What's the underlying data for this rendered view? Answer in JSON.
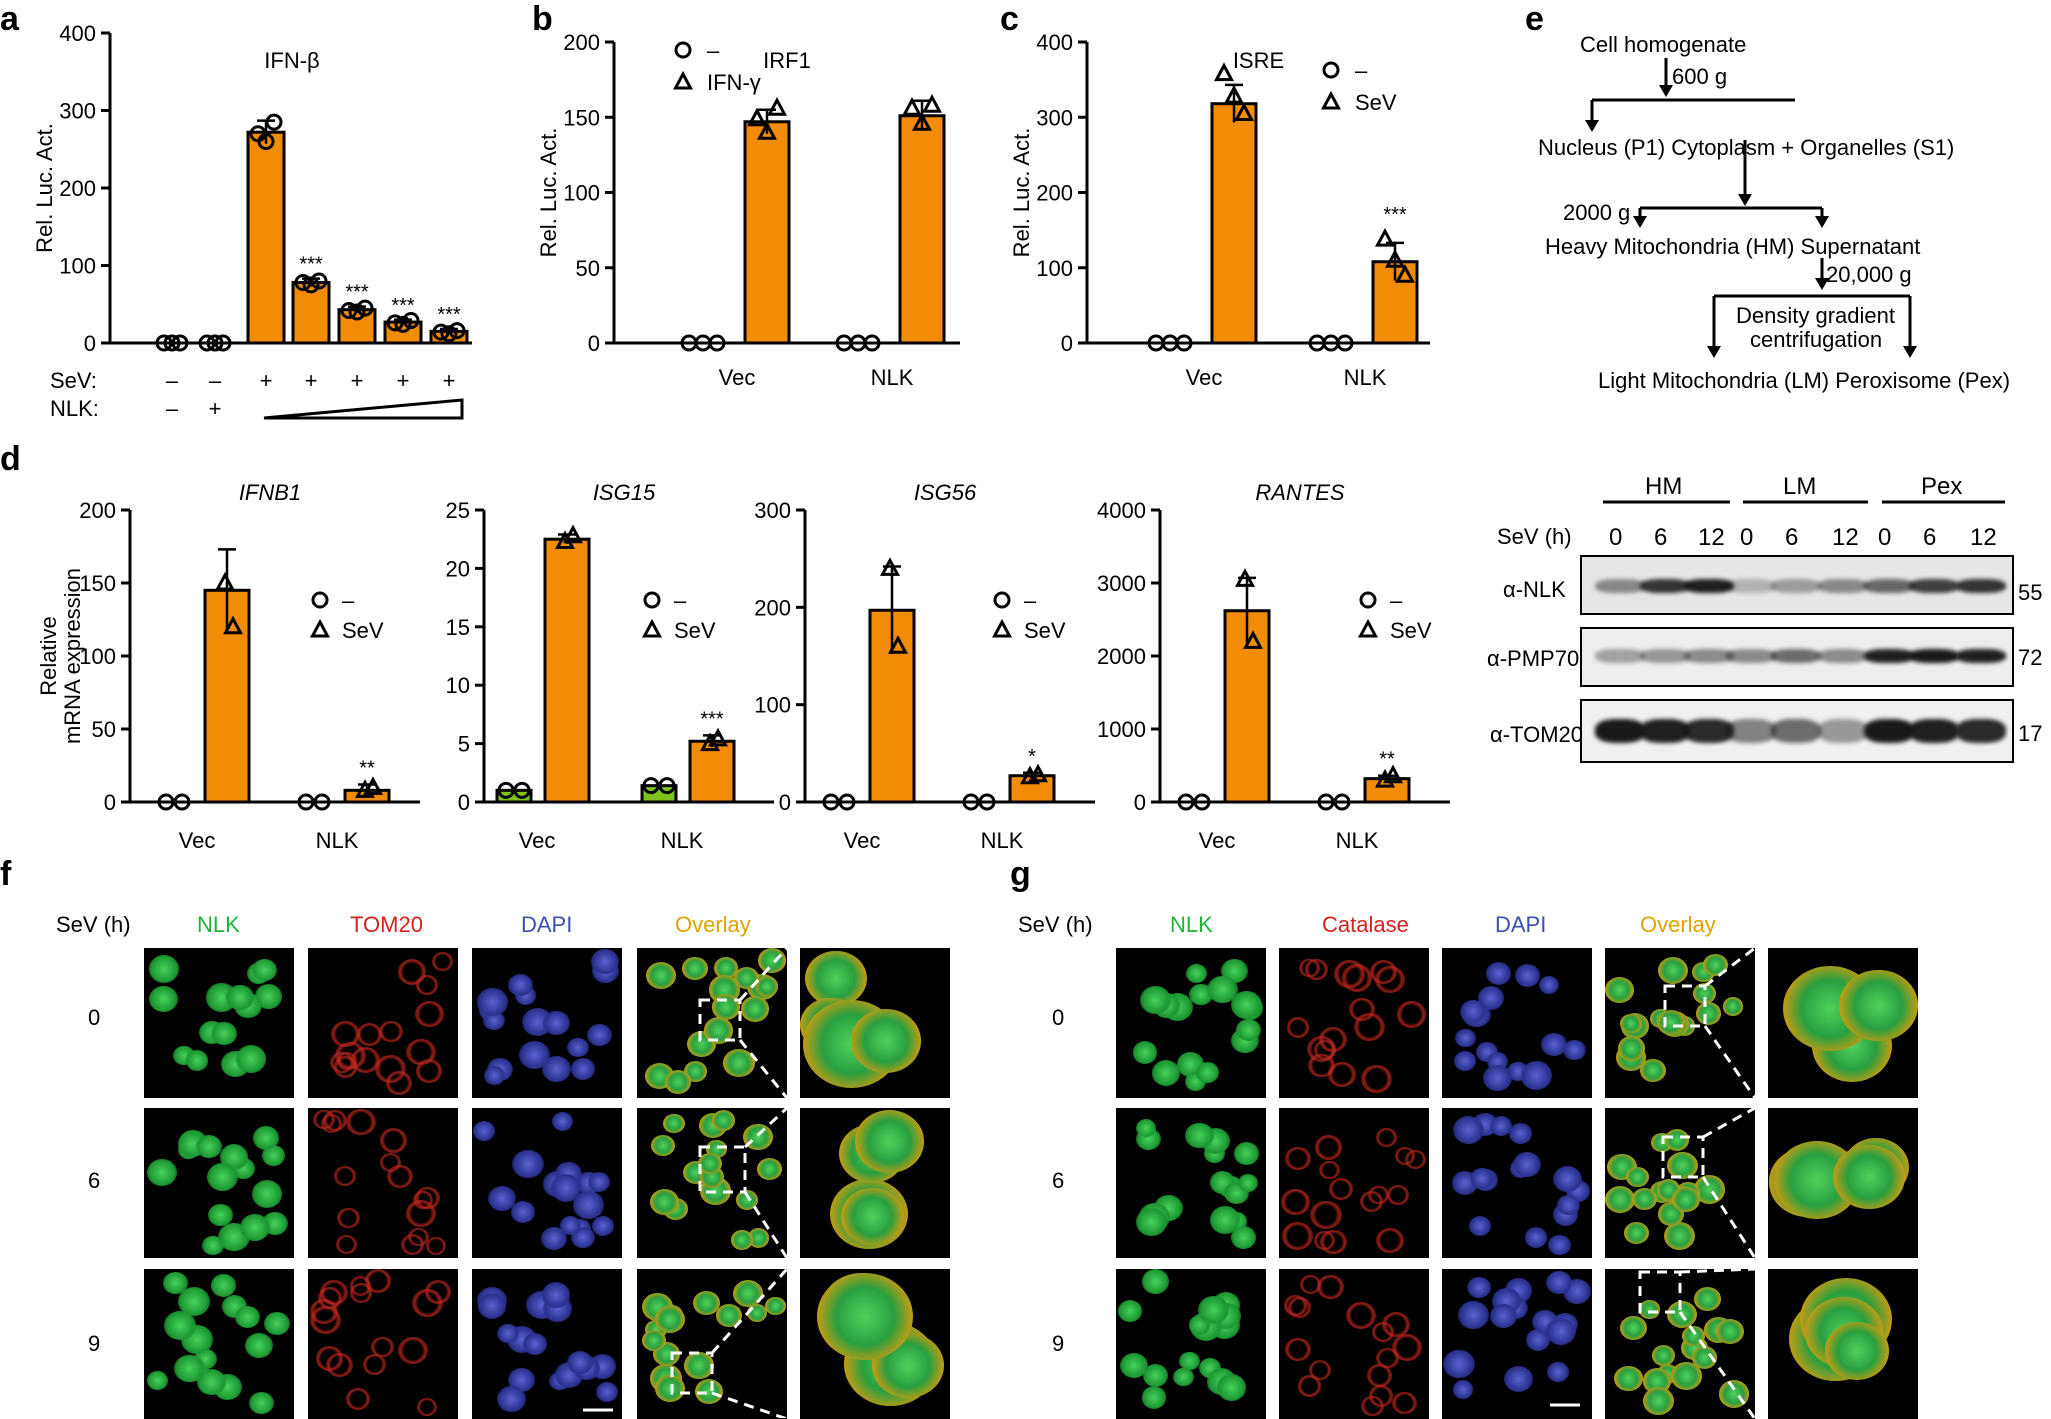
{
  "panels": {
    "a": {
      "letter": "a",
      "title": "IFN-β",
      "ylabel": "Rel. Luc. Act.",
      "row_sev_label": "SeV:",
      "row_nlk_label": "NLK:",
      "sev_marks": [
        "–",
        "–",
        "+",
        "+",
        "+",
        "+",
        "+"
      ],
      "nlk_marks": [
        "–",
        "+"
      ],
      "stars": [
        "***",
        "***",
        "***",
        "***"
      ]
    },
    "b": {
      "letter": "b",
      "title": "IRF1",
      "ylabel": "Rel. Luc. Act.",
      "legend": [
        "–",
        "IFN-γ"
      ],
      "xticks": [
        "Vec",
        "NLK"
      ]
    },
    "c": {
      "letter": "c",
      "title": "ISRE",
      "ylabel": "Rel. Luc. Act.",
      "legend": [
        "–",
        "SeV"
      ],
      "xticks": [
        "Vec",
        "NLK"
      ],
      "stars": [
        "***"
      ]
    },
    "d": {
      "letter": "d",
      "ylabel_1": "Relative",
      "ylabel_2": "mRNA expression",
      "genes": [
        "IFNB1",
        "ISG15",
        "ISG56",
        "RANTES"
      ],
      "legend": [
        "–",
        "SeV"
      ],
      "xticks": [
        "Vec",
        "NLK"
      ],
      "stars": [
        "**",
        "***",
        "*",
        "**"
      ]
    },
    "e": {
      "letter": "e",
      "flow": {
        "top": "Cell homogenate",
        "g1": "600 g",
        "row1": "Nucleus (P1) Cytoplasm + Organelles (S1)",
        "g2": "2000 g",
        "row2": "Heavy Mitochondria (HM) Supernatant",
        "g3": "20,000 g",
        "box1": "Density gradient",
        "box2": "centrifugation",
        "row3": "Light Mitochondria (LM) Peroxisome (Pex)"
      },
      "blot": {
        "groups": [
          "HM",
          "LM",
          "Pex"
        ],
        "sev_label": "SeV (h)",
        "times": [
          "0",
          "6",
          "12",
          "0",
          "6",
          "12",
          "0",
          "6",
          "12"
        ],
        "rows": [
          {
            "label": "α-NLK",
            "mw": "55"
          },
          {
            "label": "α-PMP70",
            "mw": "72"
          },
          {
            "label": "α-TOM20",
            "mw": "17"
          }
        ]
      }
    },
    "f": {
      "letter": "f",
      "sev_label": "SeV (h)",
      "cols": [
        "NLK",
        "TOM20",
        "DAPI",
        "Overlay"
      ],
      "rows": [
        "0",
        "6",
        "9"
      ]
    },
    "g": {
      "letter": "g",
      "sev_label": "SeV (h)",
      "cols": [
        "NLK",
        "Catalase",
        "DAPI",
        "Overlay"
      ],
      "rows": [
        "0",
        "6",
        "9"
      ]
    }
  },
  "colors": {
    "orange": "#f28c06",
    "green_bar": "#7cc31b",
    "nlk": "#1fb43a",
    "tom20": "#d6221c",
    "dapi": "#3d4fb0",
    "overlay": "#e0a300"
  },
  "chart_data": [
    {
      "type": "bar",
      "title": "IFN-β",
      "ylabel": "Rel. Luc. Act.",
      "ylim": [
        0,
        400
      ],
      "series": [
        {
          "values": [
            0,
            0,
            272,
            78,
            43,
            27,
            15
          ]
        }
      ]
    },
    {
      "type": "bar",
      "title": "IRF1",
      "ylabel": "Rel. Luc. Act.",
      "ylim": [
        0,
        200
      ],
      "categories": [
        "Vec",
        "NLK"
      ],
      "series": [
        {
          "name": "–",
          "values": [
            0,
            0
          ]
        },
        {
          "name": "IFN-γ",
          "values": [
            147,
            151
          ]
        }
      ]
    },
    {
      "type": "bar",
      "title": "ISRE",
      "ylabel": "Rel. Luc. Act.",
      "ylim": [
        0,
        400
      ],
      "categories": [
        "Vec",
        "NLK"
      ],
      "series": [
        {
          "name": "–",
          "values": [
            0,
            0
          ]
        },
        {
          "name": "SeV",
          "values": [
            318,
            108
          ]
        }
      ]
    },
    {
      "type": "bar",
      "title": "IFNB1",
      "ylim": [
        0,
        200
      ],
      "categories": [
        "Vec",
        "NLK"
      ],
      "series": [
        {
          "name": "–",
          "values": [
            0,
            0
          ]
        },
        {
          "name": "SeV",
          "values": [
            145,
            8
          ]
        }
      ]
    },
    {
      "type": "bar",
      "title": "ISG15",
      "ylim": [
        0,
        25
      ],
      "categories": [
        "Vec",
        "NLK"
      ],
      "series": [
        {
          "name": "–",
          "values": [
            1,
            1.4
          ]
        },
        {
          "name": "SeV",
          "values": [
            22.5,
            5.2
          ]
        }
      ]
    },
    {
      "type": "bar",
      "title": "ISG56",
      "ylim": [
        0,
        300
      ],
      "categories": [
        "Vec",
        "NLK"
      ],
      "series": [
        {
          "name": "–",
          "values": [
            0,
            0
          ]
        },
        {
          "name": "SeV",
          "values": [
            197,
            27
          ]
        }
      ]
    },
    {
      "type": "bar",
      "title": "RANTES",
      "ylim": [
        0,
        4000
      ],
      "categories": [
        "Vec",
        "NLK"
      ],
      "series": [
        {
          "name": "–",
          "values": [
            0,
            0
          ]
        },
        {
          "name": "SeV",
          "values": [
            2620,
            320
          ]
        }
      ]
    }
  ]
}
